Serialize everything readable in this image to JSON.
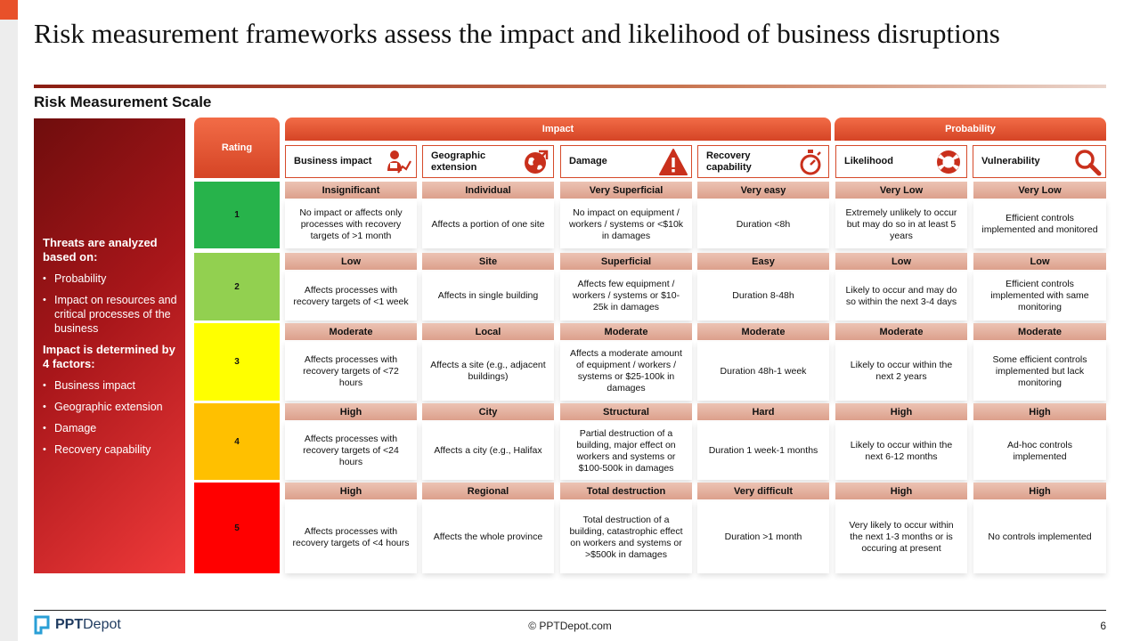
{
  "title": "Risk measurement frameworks assess the impact and likelihood of business disruptions",
  "subtitle": "Risk Measurement Scale",
  "sidebar": {
    "heading1": "Threats are analyzed based on:",
    "list1": [
      "Probability",
      "Impact on resources and critical processes of the business"
    ],
    "heading2": "Impact is determined by 4 factors:",
    "list2": [
      "Business impact",
      "Geographic extension",
      "Damage",
      "Recovery capability"
    ]
  },
  "table": {
    "rating_header": "Rating",
    "impact_header": "Impact",
    "probability_header": "Probability",
    "columns": [
      {
        "label": "Business impact",
        "icon": "business-impact-icon"
      },
      {
        "label": "Geographic extension",
        "icon": "globe-icon"
      },
      {
        "label": "Damage",
        "icon": "warning-icon"
      },
      {
        "label": "Recovery capability",
        "icon": "stopwatch-icon"
      },
      {
        "label": "Likelihood",
        "icon": "lifebuoy-icon"
      },
      {
        "label": "Vulnerability",
        "icon": "magnifier-icon"
      }
    ],
    "rows": [
      {
        "rating": "1",
        "color": "#27b34b",
        "cells": [
          {
            "level": "Insignificant",
            "desc": "No impact or affects only processes with recovery targets of >1 month"
          },
          {
            "level": "Individual",
            "desc": "Affects a portion of one site"
          },
          {
            "level": "Very Superficial",
            "desc": "No impact on equipment / workers / systems or <$10k in damages"
          },
          {
            "level": "Very easy",
            "desc": "Duration <8h"
          },
          {
            "level": "Very Low",
            "desc": "Extremely unlikely to occur but may do so in at least 5 years"
          },
          {
            "level": "Very Low",
            "desc": "Efficient controls implemented and monitored"
          }
        ]
      },
      {
        "rating": "2",
        "color": "#92d050",
        "cells": [
          {
            "level": "Low",
            "desc": "Affects processes with recovery targets of <1 week"
          },
          {
            "level": "Site",
            "desc": "Affects in single building"
          },
          {
            "level": "Superficial",
            "desc": "Affects few equipment / workers / systems or $10-25k in damages"
          },
          {
            "level": "Easy",
            "desc": "Duration 8-48h"
          },
          {
            "level": "Low",
            "desc": "Likely to occur and may do so within the next 3-4 days"
          },
          {
            "level": "Low",
            "desc": "Efficient controls implemented with same monitoring"
          }
        ]
      },
      {
        "rating": "3",
        "color": "#ffff00",
        "cells": [
          {
            "level": "Moderate",
            "desc": "Affects processes with recovery targets of <72 hours"
          },
          {
            "level": "Local",
            "desc": "Affects a site (e.g., adjacent buildings)"
          },
          {
            "level": "Moderate",
            "desc": "Affects a moderate amount of equipment / workers / systems or $25-100k in damages"
          },
          {
            "level": "Moderate",
            "desc": "Duration 48h-1 week"
          },
          {
            "level": "Moderate",
            "desc": "Likely to occur within the next 2 years"
          },
          {
            "level": "Moderate",
            "desc": "Some efficient controls implemented but lack monitoring"
          }
        ]
      },
      {
        "rating": "4",
        "color": "#ffc000",
        "cells": [
          {
            "level": "High",
            "desc": "Affects processes with recovery targets of <24 hours"
          },
          {
            "level": "City",
            "desc": "Affects a city (e.g., Halifax"
          },
          {
            "level": "Structural",
            "desc": "Partial destruction of a building, major effect on workers and systems or $100-500k in damages"
          },
          {
            "level": "Hard",
            "desc": "Duration 1 week-1 months"
          },
          {
            "level": "High",
            "desc": "Likely to occur within the next 6-12 months"
          },
          {
            "level": "High",
            "desc": "Ad-hoc controls implemented"
          }
        ]
      },
      {
        "rating": "5",
        "color": "#ff0000",
        "cells": [
          {
            "level": "High",
            "desc": "Affects processes with recovery targets of <4 hours"
          },
          {
            "level": "Regional",
            "desc": "Affects the whole province"
          },
          {
            "level": "Total destruction",
            "desc": "Total destruction of a building, catastrophic effect on workers and systems or >$500k in damages"
          },
          {
            "level": "Very difficult",
            "desc": "Duration >1 month"
          },
          {
            "level": "High",
            "desc": "Very likely to occur within the next 1-3 months or is occuring at present"
          },
          {
            "level": "High",
            "desc": "No controls implemented"
          }
        ]
      }
    ]
  },
  "footer": {
    "logo_bold": "PPT",
    "logo_rest": "Depot",
    "copyright": "© PPTDepot.com",
    "page": "6"
  }
}
